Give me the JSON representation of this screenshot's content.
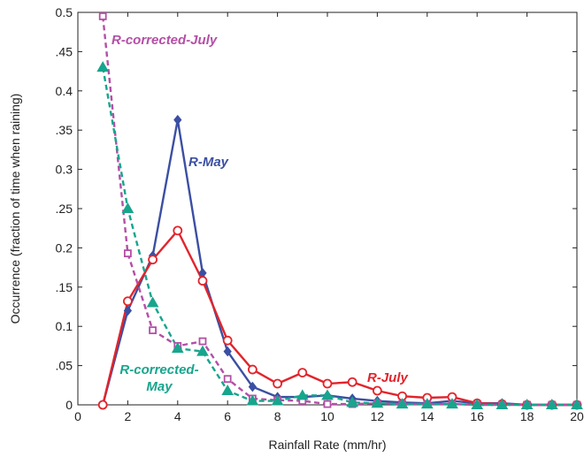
{
  "chart_data": {
    "type": "line",
    "xlabel": "Rainfall Rate (mm/hr)",
    "ylabel": "Occurrence (fraction of time when raining)",
    "x": [
      1,
      2,
      3,
      4,
      5,
      6,
      7,
      8,
      9,
      10,
      11,
      12,
      13,
      14,
      15,
      16,
      17,
      18,
      19,
      20
    ],
    "xlim": [
      0,
      20
    ],
    "xticks": [
      0,
      2,
      4,
      6,
      8,
      10,
      12,
      14,
      16,
      18,
      20
    ],
    "ylim": [
      0,
      0.5
    ],
    "yticks": [
      0,
      {
        "value": 0.05,
        "label": ".05"
      },
      0.1,
      {
        "value": 0.15,
        "label": ".15"
      },
      0.2,
      {
        "value": 0.25,
        "label": ".25"
      },
      0.3,
      {
        "value": 0.35,
        "label": ".35"
      },
      0.4,
      {
        "value": 0.45,
        "label": ".45"
      },
      0.5
    ],
    "series": [
      {
        "name": "R-May",
        "color": "#3b4fa3",
        "marker": "diamond",
        "dashed": false,
        "values": [
          0,
          0.12,
          0.19,
          0.363,
          0.168,
          0.068,
          0.023,
          0.01,
          0.01,
          0.012,
          0.008,
          0.005,
          0.003,
          0.002,
          0.005,
          0.002,
          0.002,
          0,
          0,
          0
        ]
      },
      {
        "name": "R-July",
        "color": "#e2242b",
        "marker": "circle",
        "dashed": false,
        "values": [
          0,
          0.132,
          0.185,
          0.222,
          0.158,
          0.082,
          0.045,
          0.027,
          0.041,
          0.027,
          0.029,
          0.018,
          0.011,
          0.009,
          0.01,
          0.002,
          0.001,
          0,
          0,
          0
        ]
      },
      {
        "name": "R-corrected-July",
        "color": "#b44fa6",
        "marker": "square",
        "dashed": true,
        "values": [
          0.495,
          0.193,
          0.095,
          0.075,
          0.081,
          0.033,
          0.008,
          0.006,
          0.005,
          0.001,
          0.001,
          0.002,
          0.001,
          0.001,
          0.001,
          0,
          0,
          0,
          0,
          0
        ]
      },
      {
        "name": "R-corrected-May",
        "color": "#17a58d",
        "marker": "triangle",
        "dashed": true,
        "values": [
          0.43,
          0.25,
          0.13,
          0.072,
          0.068,
          0.018,
          0.005,
          0.005,
          0.012,
          0.012,
          0.003,
          0.002,
          0.001,
          0.001,
          0.001,
          0,
          0,
          0,
          0,
          0
        ]
      }
    ]
  }
}
